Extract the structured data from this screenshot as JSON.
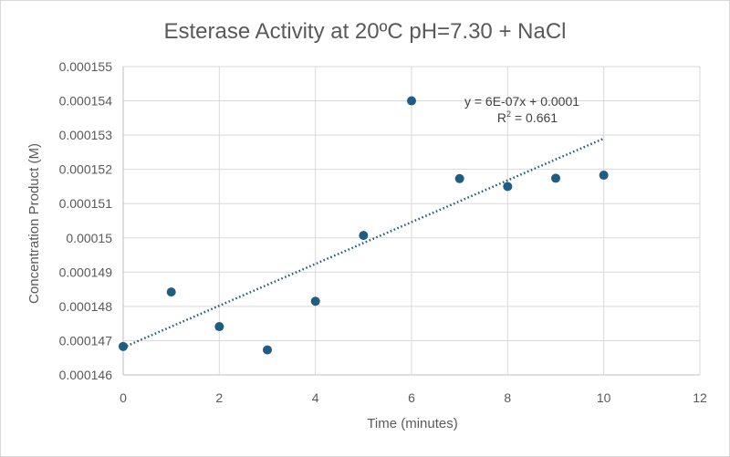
{
  "chart_data": {
    "type": "scatter",
    "title": "Esterase Activity at 20ºC  pH=7.30 + NaCl",
    "xlabel": "Time (minutes)",
    "ylabel": "Concentration Product (M)",
    "xlim": [
      0,
      12
    ],
    "ylim": [
      0.000146,
      0.000155
    ],
    "x_ticks": [
      "0",
      "2",
      "4",
      "6",
      "8",
      "10",
      "12"
    ],
    "y_ticks": [
      "0.000146",
      "0.000147",
      "0.000148",
      "0.000149",
      "0.00015",
      "0.000151",
      "0.000152",
      "0.000153",
      "0.000154",
      "0.000155"
    ],
    "grid": true,
    "legend": "none",
    "marker_color": "#1f5d82",
    "trendline": {
      "type": "linear",
      "style": "dotted",
      "color": "#1f5d82",
      "x_range": [
        0,
        10
      ],
      "y_start": 0.0001468,
      "y_end": 0.0001529,
      "equation": "y = 6E-07x + 0.0001",
      "r2_prefix": "R",
      "r2_power": "2",
      "r2_value": " = 0.661"
    },
    "series": [
      {
        "x": [
          0,
          1,
          2,
          3,
          4,
          5,
          6,
          7,
          8,
          9,
          10
        ],
        "y": [
          0.00014683,
          0.00014842,
          0.00014741,
          0.00014673,
          0.00014815,
          0.00015007,
          0.000154,
          0.00015173,
          0.0001515,
          0.00015174,
          0.00015183
        ]
      }
    ]
  }
}
